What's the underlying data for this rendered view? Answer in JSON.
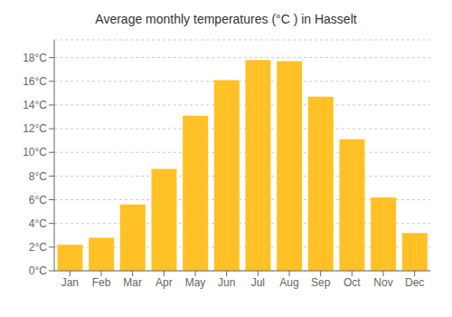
{
  "chart_data": {
    "type": "bar",
    "title": "Average monthly temperatures (°C ) in Hasselt",
    "categories": [
      "Jan",
      "Feb",
      "Mar",
      "Apr",
      "May",
      "Jun",
      "Jul",
      "Aug",
      "Sep",
      "Oct",
      "Nov",
      "Dec"
    ],
    "values": [
      2.2,
      2.8,
      5.6,
      8.6,
      13.1,
      16.1,
      17.8,
      17.7,
      14.7,
      11.1,
      6.2,
      3.2
    ],
    "color": "#FFC125",
    "ylim": [
      0,
      19.5
    ],
    "yticks": [
      {
        "value": 0,
        "label": "0°C"
      },
      {
        "value": 2,
        "label": "2°C"
      },
      {
        "value": 4,
        "label": "4°C"
      },
      {
        "value": 6,
        "label": "6°C"
      },
      {
        "value": 8,
        "label": "8°C"
      },
      {
        "value": 10,
        "label": "10°C"
      },
      {
        "value": 12,
        "label": "12°C"
      },
      {
        "value": 14,
        "label": "14°C"
      },
      {
        "value": 16,
        "label": "16°C"
      },
      {
        "value": 18,
        "label": "18°C"
      }
    ],
    "grid": true
  }
}
